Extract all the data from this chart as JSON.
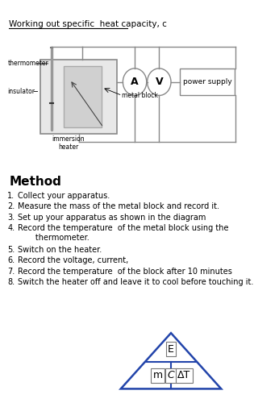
{
  "title": "Working out specific  heat capacity, c",
  "method_title": "Method",
  "method_steps": [
    "Collect your apparatus.",
    "Measure the mass of the metal block and record it.",
    "Set up your apparatus as shown in the diagram",
    "Record the temperature  of the metal block using the\n       thermometer.",
    "Switch on the heater.",
    "Record the voltage, current,",
    "Record the temperature  of the block after 10 minutes",
    "Switch the heater off and leave it to cool before touching it."
  ],
  "labels": {
    "thermometer": "thermometer",
    "insulator": "insulator",
    "metal_block": "metal block",
    "immersion_heater": "immersion\nheater",
    "ammeter": "A",
    "voltmeter": "V",
    "power_supply": "power supply"
  },
  "triangle_labels": [
    "E",
    "m",
    "C",
    "ΔT"
  ],
  "bg_color": "#ffffff",
  "text_color": "#000000",
  "line_color": "#888888",
  "triangle_color": "#2244aa"
}
